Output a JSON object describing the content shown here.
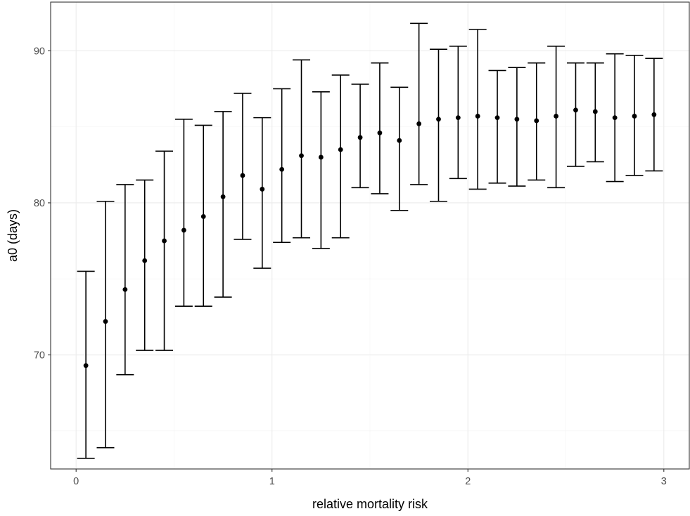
{
  "chart_data": {
    "type": "scatter",
    "title": "",
    "xlabel": "relative mortality risk",
    "ylabel": "a0 (days)",
    "xlim": [
      -0.13,
      3.13
    ],
    "ylim": [
      62.5,
      93.2
    ],
    "x_ticks": [
      0,
      1,
      2,
      3
    ],
    "y_ticks": [
      70,
      80,
      90
    ],
    "x_minor": [
      0.5,
      1.5,
      2.5
    ],
    "y_minor": [
      65,
      75,
      85
    ],
    "grid": true,
    "legend": "none",
    "errorbar_color": "#000000",
    "point_color": "#000000",
    "points": [
      {
        "x": 0.05,
        "y": 69.3,
        "ymin": 63.2,
        "ymax": 75.5
      },
      {
        "x": 0.15,
        "y": 72.2,
        "ymin": 63.9,
        "ymax": 80.1
      },
      {
        "x": 0.25,
        "y": 74.3,
        "ymin": 68.7,
        "ymax": 81.2
      },
      {
        "x": 0.35,
        "y": 76.2,
        "ymin": 70.3,
        "ymax": 81.5
      },
      {
        "x": 0.45,
        "y": 77.5,
        "ymin": 70.3,
        "ymax": 83.4
      },
      {
        "x": 0.55,
        "y": 78.2,
        "ymin": 73.2,
        "ymax": 85.5
      },
      {
        "x": 0.65,
        "y": 79.1,
        "ymin": 73.2,
        "ymax": 85.1
      },
      {
        "x": 0.75,
        "y": 80.4,
        "ymin": 73.8,
        "ymax": 86.0
      },
      {
        "x": 0.85,
        "y": 81.8,
        "ymin": 77.6,
        "ymax": 87.2
      },
      {
        "x": 0.95,
        "y": 80.9,
        "ymin": 75.7,
        "ymax": 85.6
      },
      {
        "x": 1.05,
        "y": 82.2,
        "ymin": 77.4,
        "ymax": 87.5
      },
      {
        "x": 1.15,
        "y": 83.1,
        "ymin": 77.7,
        "ymax": 89.4
      },
      {
        "x": 1.25,
        "y": 83.0,
        "ymin": 77.0,
        "ymax": 87.3
      },
      {
        "x": 1.35,
        "y": 83.5,
        "ymin": 77.7,
        "ymax": 88.4
      },
      {
        "x": 1.45,
        "y": 84.3,
        "ymin": 81.0,
        "ymax": 87.8
      },
      {
        "x": 1.55,
        "y": 84.6,
        "ymin": 80.6,
        "ymax": 89.2
      },
      {
        "x": 1.65,
        "y": 84.1,
        "ymin": 79.5,
        "ymax": 87.6
      },
      {
        "x": 1.75,
        "y": 85.2,
        "ymin": 81.2,
        "ymax": 91.8
      },
      {
        "x": 1.85,
        "y": 85.5,
        "ymin": 80.1,
        "ymax": 90.1
      },
      {
        "x": 1.95,
        "y": 85.6,
        "ymin": 81.6,
        "ymax": 90.3
      },
      {
        "x": 2.05,
        "y": 85.7,
        "ymin": 80.9,
        "ymax": 91.4
      },
      {
        "x": 2.15,
        "y": 85.6,
        "ymin": 81.3,
        "ymax": 88.7
      },
      {
        "x": 2.25,
        "y": 85.5,
        "ymin": 81.1,
        "ymax": 88.9
      },
      {
        "x": 2.35,
        "y": 85.4,
        "ymin": 81.5,
        "ymax": 89.2
      },
      {
        "x": 2.45,
        "y": 85.7,
        "ymin": 81.0,
        "ymax": 90.3
      },
      {
        "x": 2.55,
        "y": 86.1,
        "ymin": 82.4,
        "ymax": 89.2
      },
      {
        "x": 2.65,
        "y": 86.0,
        "ymin": 82.7,
        "ymax": 89.2
      },
      {
        "x": 2.75,
        "y": 85.6,
        "ymin": 81.4,
        "ymax": 89.8
      },
      {
        "x": 2.85,
        "y": 85.7,
        "ymin": 81.8,
        "ymax": 89.7
      },
      {
        "x": 2.95,
        "y": 85.8,
        "ymin": 82.1,
        "ymax": 89.5
      }
    ]
  }
}
